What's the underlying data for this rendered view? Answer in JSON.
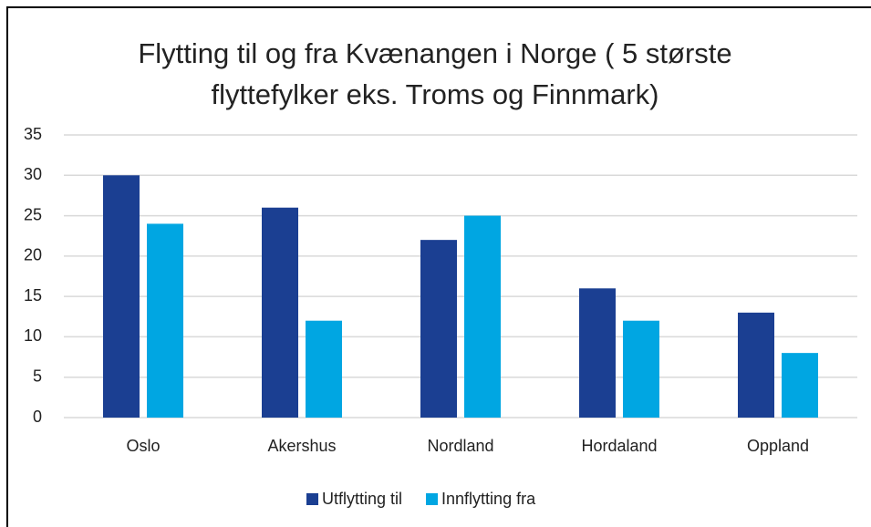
{
  "chart_data": {
    "type": "bar",
    "title": "Flytting til og fra Kvænangen i Norge ( 5 største flyttefylker eks. Troms og Finnmark)",
    "categories": [
      "Oslo",
      "Akershus",
      "Nordland",
      "Hordaland",
      "Oppland"
    ],
    "series": [
      {
        "name": "Utflytting til",
        "color": "#1b3f92",
        "values": [
          30,
          26,
          22,
          16,
          13
        ]
      },
      {
        "name": "Innflytting fra",
        "color": "#00a6e2",
        "values": [
          24,
          12,
          25,
          12,
          8
        ]
      }
    ],
    "ylim": [
      0,
      35
    ],
    "yticks": [
      0,
      5,
      10,
      15,
      20,
      25,
      30,
      35
    ],
    "grid": true,
    "legend": "bottom"
  }
}
